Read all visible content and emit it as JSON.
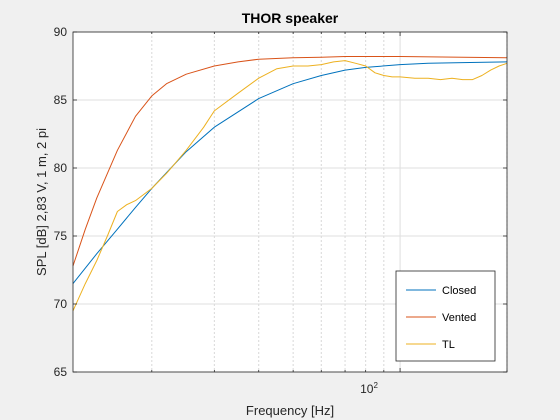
{
  "chart_data": {
    "type": "line",
    "title": "THOR speaker",
    "xlabel": "Frequency [Hz]",
    "ylabel": "SPL [dB] 2,83 V, 1 m, 2 pi",
    "x_scale": "log",
    "xlim": [
      12,
      200
    ],
    "ylim": [
      65,
      90
    ],
    "yticks": [
      65,
      70,
      75,
      80,
      85,
      90
    ],
    "ytick_labels": [
      "65",
      "70",
      "75",
      "80",
      "85",
      "90"
    ],
    "xticks": [
      100
    ],
    "xtick_label_base": "10",
    "xtick_label_exp": "2",
    "grid": true,
    "legend_position": "bottom-right",
    "colors": {
      "Closed": "#0072BD",
      "Vented": "#D95319",
      "TL": "#EDB120"
    },
    "series": [
      {
        "name": "Closed",
        "x": [
          12,
          14,
          16,
          18,
          20,
          25,
          30,
          40,
          50,
          60,
          70,
          80,
          100,
          120,
          150,
          200
        ],
        "y": [
          71.5,
          73.7,
          75.5,
          77.1,
          78.5,
          81.2,
          83.0,
          85.1,
          86.2,
          86.8,
          87.2,
          87.4,
          87.6,
          87.7,
          87.75,
          87.8
        ]
      },
      {
        "name": "Vented",
        "x": [
          12,
          13,
          14,
          16,
          18,
          20,
          22,
          25,
          30,
          35,
          40,
          50,
          60,
          70,
          80,
          100,
          150,
          200
        ],
        "y": [
          72.8,
          75.5,
          77.8,
          81.3,
          83.8,
          85.3,
          86.2,
          86.9,
          87.5,
          87.8,
          88.0,
          88.1,
          88.15,
          88.2,
          88.2,
          88.2,
          88.15,
          88.1
        ]
      },
      {
        "name": "TL",
        "x": [
          12,
          13,
          14,
          15,
          16,
          17,
          18,
          20,
          22,
          25,
          28,
          30,
          35,
          40,
          45,
          50,
          55,
          60,
          65,
          70,
          75,
          80,
          85,
          90,
          95,
          100,
          110,
          120,
          130,
          140,
          150,
          160,
          170,
          180,
          190,
          200
        ],
        "y": [
          69.5,
          71.5,
          73.2,
          75.0,
          76.8,
          77.3,
          77.6,
          78.5,
          79.6,
          81.3,
          83.0,
          84.2,
          85.5,
          86.6,
          87.3,
          87.5,
          87.5,
          87.6,
          87.8,
          87.9,
          87.7,
          87.5,
          87.0,
          86.8,
          86.7,
          86.7,
          86.6,
          86.6,
          86.5,
          86.6,
          86.5,
          86.5,
          86.8,
          87.2,
          87.5,
          87.7
        ]
      }
    ]
  }
}
